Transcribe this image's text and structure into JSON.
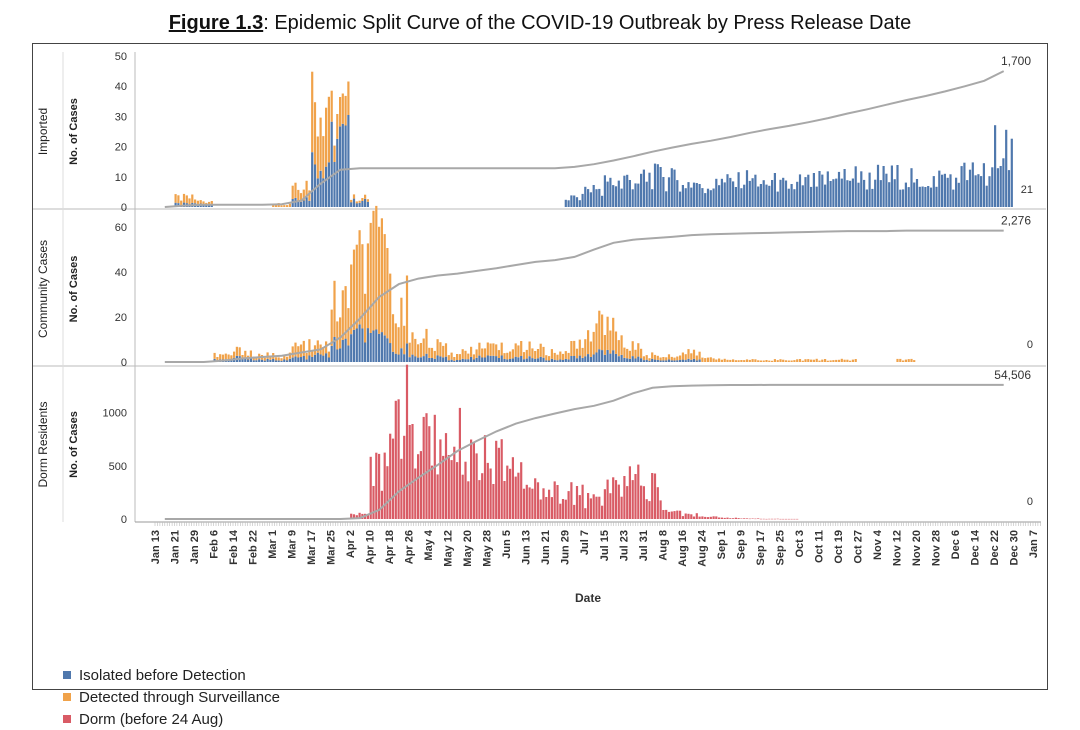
{
  "figure": {
    "title_label": "Figure 1.3",
    "title_text": ": Epidemic Split Curve of the COVID-19 Outbreak by Press Release Date"
  },
  "colors": {
    "imported": "#4f78ad",
    "surveillance": "#f0a24a",
    "dorm": "#d95b65",
    "cumulative": "#a8a8a8",
    "gridline": "#dddddd"
  },
  "legend": [
    {
      "label": "Isolated before Detection",
      "color": "#4f78ad"
    },
    {
      "label": "Detected through Surveillance",
      "color": "#f0a24a"
    },
    {
      "label": "Dorm (before 24 Aug)",
      "color": "#d95b65"
    }
  ],
  "chart_data": [
    {
      "type": "bar",
      "panel": "Imported",
      "ylabel": "No. of Cases",
      "ylim": [
        0,
        50
      ],
      "yticks": [
        "0",
        "10",
        "20",
        "30",
        "40",
        "50"
      ],
      "cumulative_end_label": "1,700",
      "last_value_label": "21",
      "x": [
        "Jan 13",
        "Jan 21",
        "Jan 29",
        "Feb 6",
        "Feb 14",
        "Feb 22",
        "Mar 1",
        "Mar 9",
        "Mar 17",
        "Mar 25",
        "Apr 2",
        "Apr 10",
        "Apr 18",
        "Apr 26",
        "May 4",
        "May 12",
        "May 20",
        "May 28",
        "Jun 5",
        "Jun 13",
        "Jun 21",
        "Jun 29",
        "Jul 7",
        "Jul 15",
        "Jul 23",
        "Jul 31",
        "Aug 8",
        "Aug 16",
        "Aug 24",
        "Sep 1",
        "Sep 9",
        "Sep 17",
        "Sep 25",
        "Oct 3",
        "Oct 11",
        "Oct 19",
        "Oct 27",
        "Nov 4",
        "Nov 12",
        "Nov 20",
        "Nov 28",
        "Dec 6",
        "Dec 14",
        "Dec 22"
      ],
      "series": [
        {
          "name": "Isolated before Detection",
          "values": [
            0,
            1,
            1,
            0,
            0,
            0,
            0,
            3,
            15,
            22,
            2,
            0,
            0,
            0,
            0,
            0,
            0,
            0,
            0,
            0,
            0,
            3,
            6,
            8,
            9,
            10,
            9,
            8,
            7,
            8,
            9,
            8,
            7,
            8,
            9,
            10,
            9,
            10,
            10,
            9,
            10,
            11,
            12,
            21
          ]
        },
        {
          "name": "Detected through Surveillance",
          "values": [
            0,
            2,
            1,
            0,
            0,
            0,
            1,
            5,
            22,
            8,
            1,
            0,
            0,
            0,
            0,
            0,
            0,
            0,
            0,
            0,
            0,
            0,
            0,
            0,
            0,
            0,
            0,
            0,
            0,
            0,
            0,
            0,
            0,
            0,
            0,
            0,
            0,
            0,
            0,
            0,
            0,
            0,
            0,
            0
          ]
        }
      ],
      "cumulative_note": "scaled cumulative curve rising to 1,700"
    },
    {
      "type": "bar",
      "panel": "Community Cases",
      "ylabel": "No. of Cases",
      "ylim": [
        0,
        65
      ],
      "yticks": [
        "0",
        "20",
        "40",
        "60"
      ],
      "cumulative_end_label": "2,276",
      "last_value_label": "0",
      "x": [
        "Jan 13",
        "Jan 21",
        "Jan 29",
        "Feb 6",
        "Feb 14",
        "Feb 22",
        "Mar 1",
        "Mar 9",
        "Mar 17",
        "Mar 25",
        "Apr 2",
        "Apr 10",
        "Apr 18",
        "Apr 26",
        "May 4",
        "May 12",
        "May 20",
        "May 28",
        "Jun 5",
        "Jun 13",
        "Jun 21",
        "Jun 29",
        "Jul 7",
        "Jul 15",
        "Jul 23",
        "Jul 31",
        "Aug 8",
        "Aug 16",
        "Aug 24",
        "Sep 1",
        "Sep 9",
        "Sep 17",
        "Sep 25",
        "Oct 3",
        "Oct 11",
        "Oct 19",
        "Oct 27",
        "Nov 4",
        "Nov 12",
        "Nov 20",
        "Nov 28",
        "Dec 6",
        "Dec 14",
        "Dec 22"
      ],
      "series": [
        {
          "name": "Isolated before Detection",
          "values": [
            0,
            0,
            0,
            1,
            2,
            1,
            1,
            2,
            3,
            8,
            12,
            10,
            6,
            3,
            2,
            1,
            2,
            2,
            2,
            2,
            1,
            2,
            4,
            4,
            2,
            1,
            1,
            1,
            0,
            0,
            0,
            0,
            0,
            0,
            0,
            0,
            0,
            0,
            0,
            0,
            0,
            0,
            0,
            0
          ]
        },
        {
          "name": "Detected through Surveillance",
          "values": [
            0,
            0,
            0,
            2,
            3,
            2,
            2,
            5,
            4,
            18,
            30,
            38,
            22,
            9,
            5,
            3,
            4,
            4,
            5,
            5,
            3,
            5,
            12,
            11,
            5,
            2,
            2,
            3,
            2,
            1,
            1,
            1,
            1,
            1,
            1,
            1,
            0,
            0,
            1,
            0,
            0,
            0,
            0,
            0
          ]
        }
      ],
      "cumulative_note": "scaled cumulative curve rising to 2,276"
    },
    {
      "type": "bar",
      "panel": "Dorm Residents",
      "ylabel": "No. of Cases",
      "ylim": [
        0,
        1400
      ],
      "yticks": [
        "0",
        "500",
        "1000"
      ],
      "cumulative_end_label": "54,506",
      "last_value_label": "0",
      "x": [
        "Jan 13",
        "Jan 21",
        "Jan 29",
        "Feb 6",
        "Feb 14",
        "Feb 22",
        "Mar 1",
        "Mar 9",
        "Mar 17",
        "Mar 25",
        "Apr 2",
        "Apr 10",
        "Apr 18",
        "Apr 26",
        "May 4",
        "May 12",
        "May 20",
        "May 28",
        "Jun 5",
        "Jun 13",
        "Jun 21",
        "Jun 29",
        "Jul 7",
        "Jul 15",
        "Jul 23",
        "Jul 31",
        "Aug 8",
        "Aug 16",
        "Aug 24",
        "Sep 1",
        "Sep 9",
        "Sep 17",
        "Sep 25",
        "Oct 3",
        "Oct 11",
        "Oct 19",
        "Oct 27",
        "Nov 4",
        "Nov 12",
        "Nov 20",
        "Nov 28",
        "Dec 6",
        "Dec 14",
        "Dec 22"
      ],
      "series": [
        {
          "name": "Dorm (before 24 Aug)",
          "values": [
            0,
            0,
            0,
            0,
            0,
            0,
            0,
            0,
            0,
            0,
            50,
            450,
            1000,
            750,
            700,
            750,
            550,
            520,
            420,
            300,
            250,
            240,
            180,
            280,
            400,
            300,
            80,
            40,
            20,
            10,
            5,
            2,
            1,
            0,
            0,
            0,
            0,
            0,
            0,
            0,
            0,
            0,
            0,
            0
          ]
        }
      ],
      "cumulative_note": "scaled cumulative curve rising to 54,506"
    }
  ],
  "axis": {
    "xlabel": "Date",
    "tick_labels": [
      "Jan 13",
      "Jan 21",
      "Jan 29",
      "Feb 6",
      "Feb 14",
      "Feb 22",
      "Mar 1",
      "Mar 9",
      "Mar 17",
      "Mar 25",
      "Apr 2",
      "Apr 10",
      "Apr 18",
      "Apr 26",
      "May 4",
      "May 12",
      "May 20",
      "May 28",
      "Jun 5",
      "Jun 13",
      "Jun 21",
      "Jun 29",
      "Jul 7",
      "Jul 15",
      "Jul 23",
      "Jul 31",
      "Aug 8",
      "Aug 16",
      "Aug 24",
      "Sep 1",
      "Sep 9",
      "Sep 17",
      "Sep 25",
      "Oct 3",
      "Oct 11",
      "Oct 19",
      "Oct 27",
      "Nov 4",
      "Nov 12",
      "Nov 20",
      "Nov 28",
      "Dec 6",
      "Dec 14",
      "Dec 22",
      "Dec 30",
      "Jan 7"
    ]
  }
}
